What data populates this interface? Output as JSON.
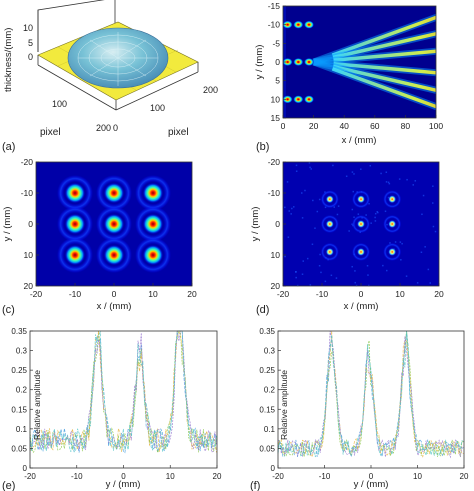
{
  "figure": {
    "panel_labels": [
      "(a)",
      "(b)",
      "(c)",
      "(d)",
      "(e)",
      "(f)"
    ]
  },
  "panel_a": {
    "zlabel": "thickness/(mm)",
    "xlabel": "pixel",
    "ylabel": "pixel",
    "z_ticks": [
      "10",
      "5",
      "0"
    ],
    "y_ticks": [
      "100",
      "200"
    ],
    "x_ticks": [
      "0",
      "100",
      "200"
    ],
    "surface_color": "#f2ea3d",
    "lens_color": "#6fc0d8"
  },
  "chart_data": [
    {
      "panel": "b",
      "type": "heatmap",
      "xlabel": "x / (mm)",
      "ylabel": "y / (mm)",
      "xlim": [
        0,
        100
      ],
      "ylim": [
        -15,
        15
      ],
      "x_ticks": [
        "0",
        "20",
        "40",
        "60",
        "80",
        "100"
      ],
      "y_ticks": [
        "-15",
        "-10",
        "-5",
        "0",
        "5",
        "10",
        "15"
      ],
      "focal_spots": [
        {
          "x": 3,
          "y": -10
        },
        {
          "x": 10,
          "y": -10
        },
        {
          "x": 17,
          "y": -10
        },
        {
          "x": 3,
          "y": 0
        },
        {
          "x": 10,
          "y": 0
        },
        {
          "x": 17,
          "y": 0
        },
        {
          "x": 3,
          "y": 10
        },
        {
          "x": 10,
          "y": 10
        },
        {
          "x": 17,
          "y": 10
        }
      ],
      "beams": [
        {
          "angle_deg": -20
        },
        {
          "angle_deg": -13
        },
        {
          "angle_deg": -5
        },
        {
          "angle_deg": 5
        },
        {
          "angle_deg": 13
        },
        {
          "angle_deg": 20
        }
      ]
    },
    {
      "panel": "c",
      "type": "heatmap",
      "xlabel": "x / (mm)",
      "ylabel": "y / (mm)",
      "xlim": [
        -20,
        20
      ],
      "ylim": [
        -20,
        20
      ],
      "x_ticks": [
        "-20",
        "-10",
        "0",
        "10",
        "20"
      ],
      "y_ticks": [
        "-20",
        "-10",
        "0",
        "10",
        "20"
      ],
      "spots": [
        {
          "x": -10,
          "y": -10
        },
        {
          "x": 0,
          "y": -10
        },
        {
          "x": 10,
          "y": -10
        },
        {
          "x": -10,
          "y": 0
        },
        {
          "x": 0,
          "y": 0
        },
        {
          "x": 10,
          "y": 0
        },
        {
          "x": -10,
          "y": 10
        },
        {
          "x": 0,
          "y": 10
        },
        {
          "x": 10,
          "y": 10
        }
      ]
    },
    {
      "panel": "d",
      "type": "heatmap",
      "xlabel": "x / (mm)",
      "ylabel": "y / (mm)",
      "xlim": [
        -20,
        20
      ],
      "ylim": [
        -20,
        20
      ],
      "x_ticks": [
        "-20",
        "-10",
        "0",
        "10",
        "20"
      ],
      "y_ticks": [
        "-20",
        "-10",
        "0",
        "10",
        "20"
      ],
      "spots": [
        {
          "x": -8,
          "y": -8
        },
        {
          "x": 0,
          "y": -8
        },
        {
          "x": 8,
          "y": -8
        },
        {
          "x": -8,
          "y": 0
        },
        {
          "x": 0,
          "y": 0
        },
        {
          "x": 8,
          "y": 0
        },
        {
          "x": -8,
          "y": 9
        },
        {
          "x": 0,
          "y": 9
        },
        {
          "x": 8,
          "y": 9
        }
      ]
    },
    {
      "panel": "e",
      "type": "line",
      "xlabel": "y / (mm)",
      "ylabel": "Relative amplitude",
      "xlim": [
        -20,
        20
      ],
      "ylim": [
        0,
        0.35
      ],
      "x_ticks": [
        "-20",
        "-10",
        "0",
        "10",
        "20"
      ],
      "y_ticks": [
        "0",
        "0.05",
        "0.1",
        "0.15",
        "0.2",
        "0.25",
        "0.3",
        "0.35"
      ],
      "peaks": [
        {
          "x": -5.5,
          "y": 0.32
        },
        {
          "x": 3.5,
          "y": 0.25
        },
        {
          "x": 12,
          "y": 0.35
        }
      ],
      "baseline": 0.07
    },
    {
      "panel": "f",
      "type": "line",
      "xlabel": "y / (mm)",
      "ylabel": "Relative amplitude",
      "xlim": [
        -20,
        20
      ],
      "ylim": [
        0,
        0.35
      ],
      "x_ticks": [
        "-20",
        "-10",
        "0",
        "10",
        "20"
      ],
      "y_ticks": [
        "0",
        "0.05",
        "0.1",
        "0.15",
        "0.2",
        "0.25",
        "0.3",
        "0.35"
      ],
      "peaks": [
        {
          "x": -8.5,
          "y": 0.3
        },
        {
          "x": -0.5,
          "y": 0.26
        },
        {
          "x": 7.5,
          "y": 0.31
        }
      ],
      "baseline": 0.05
    }
  ]
}
